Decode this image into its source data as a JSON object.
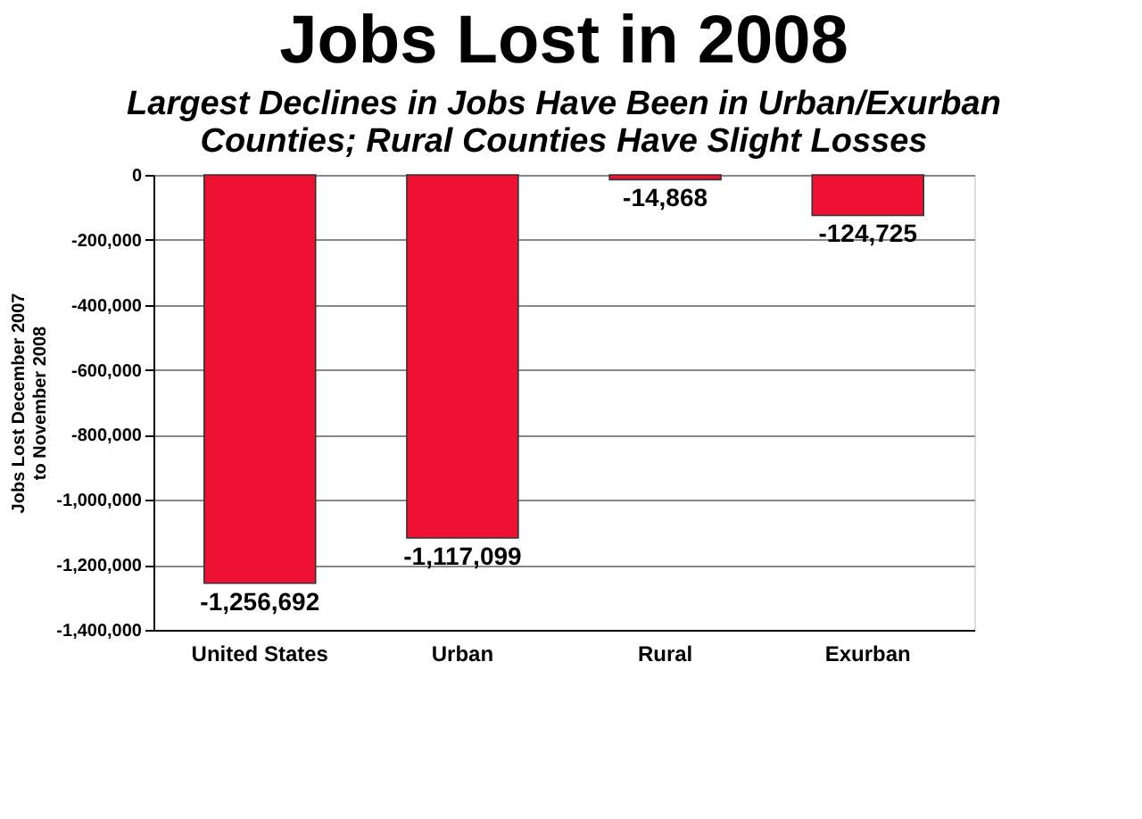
{
  "chart_data": {
    "type": "bar",
    "title": "Jobs Lost in 2008",
    "subtitle": "Largest Declines in Jobs Have Been in Urban/Exurban Counties; Rural Counties Have Slight Losses",
    "ylabel": "Jobs Lost December 2007 to November 2008",
    "categories": [
      "United States",
      "Urban",
      "Rural",
      "Exurban"
    ],
    "values": [
      -1256692,
      -1117099,
      -14868,
      -124725
    ],
    "value_labels": [
      "-1,256,692",
      "-1,117,099",
      "-14,868",
      "-124,725"
    ],
    "color": "#ee1133",
    "ylim": [
      -1400000,
      0
    ],
    "yticks": [
      {
        "value": -1400000,
        "label": "-1,400,000"
      },
      {
        "value": -1200000,
        "label": "-1,200,000"
      },
      {
        "value": -1000000,
        "label": "-1,000,000"
      },
      {
        "value": -800000,
        "label": "-800,000"
      },
      {
        "value": -600000,
        "label": "-600,000"
      },
      {
        "value": -400000,
        "label": "-400,000"
      },
      {
        "value": -200000,
        "label": "-200,000"
      },
      0
    ],
    "grid": "y"
  }
}
